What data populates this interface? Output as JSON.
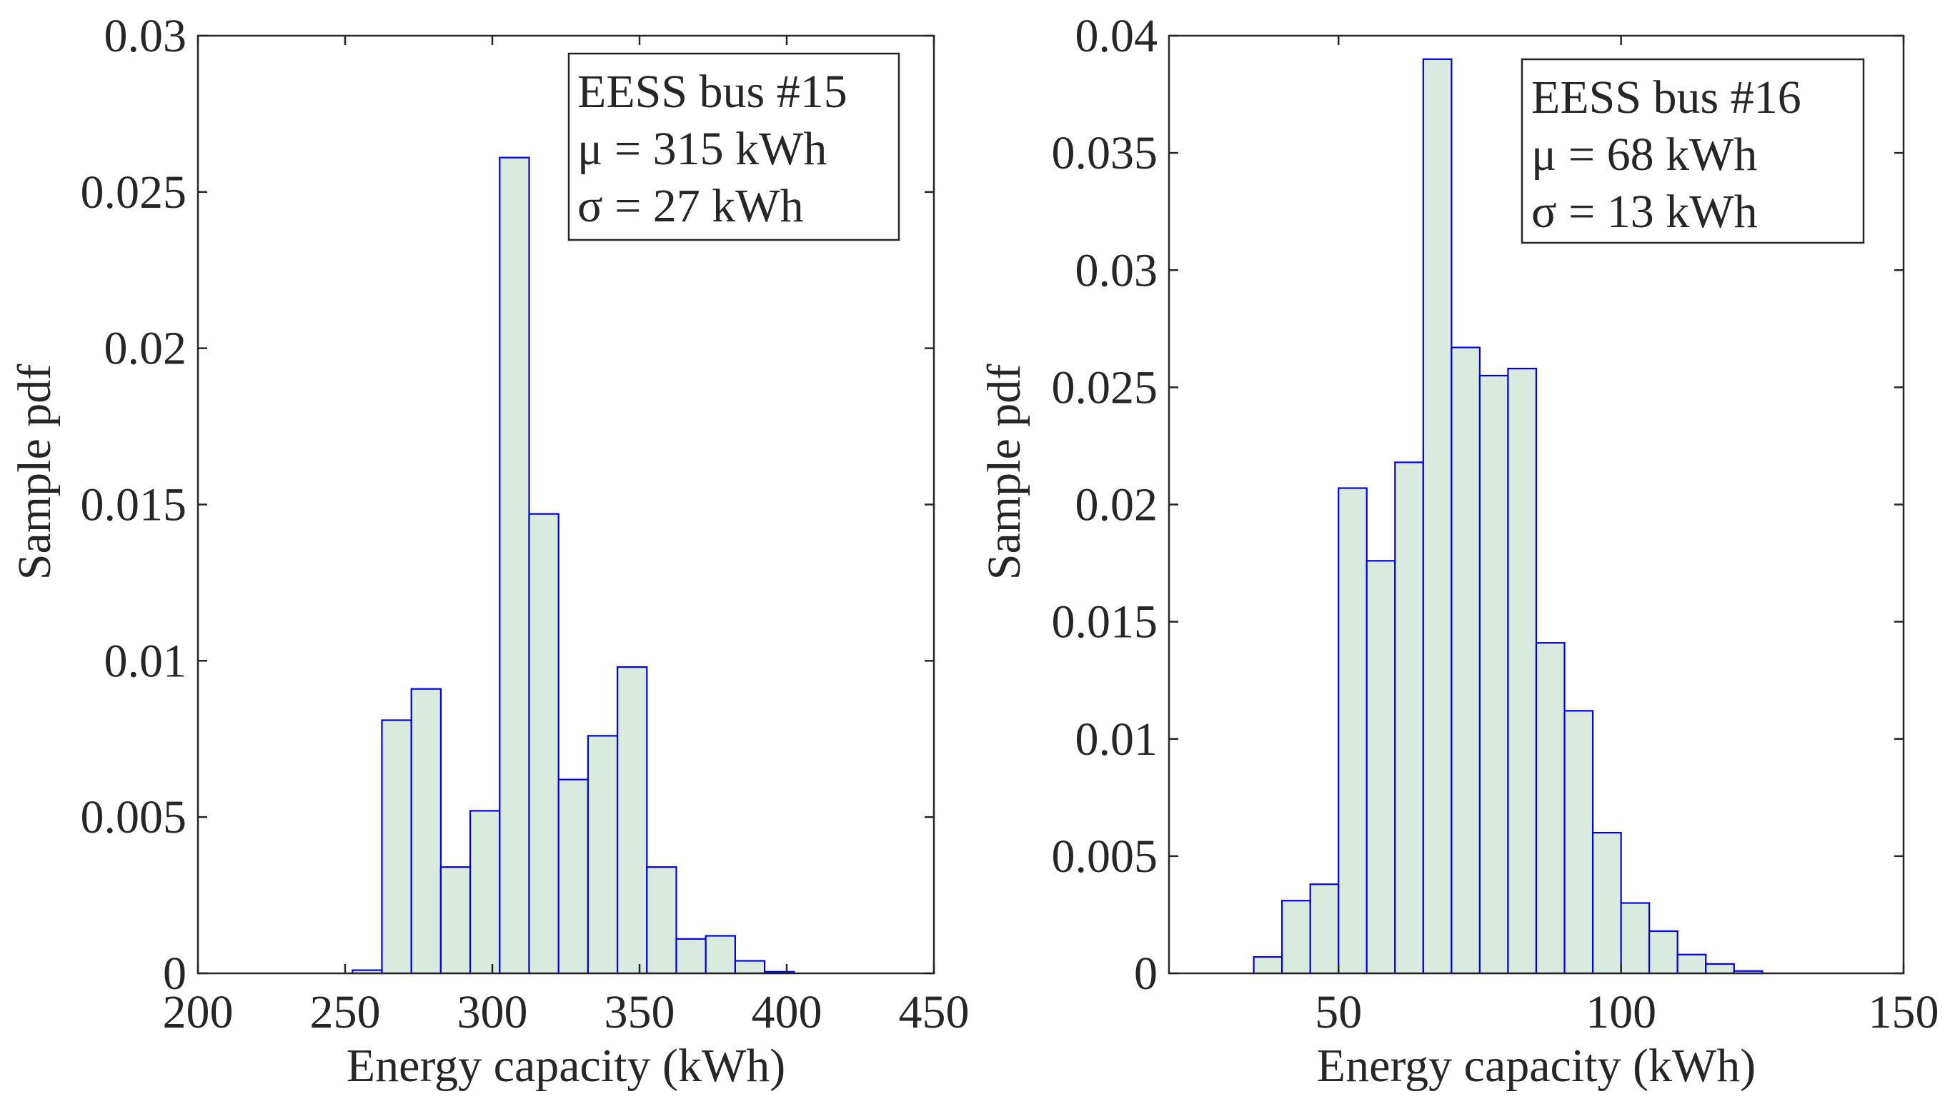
{
  "colors": {
    "bar_fill": "#d9eadf",
    "bar_edge": "#0000e6",
    "axis": "#262626",
    "background": "#ffffff"
  },
  "chart_data": [
    {
      "type": "bar",
      "subtype": "histogram",
      "xlabel": "Energy capacity (kWh)",
      "ylabel": "Sample pdf",
      "xlim": [
        200,
        450
      ],
      "ylim": [
        0,
        0.03
      ],
      "xticks": [
        200,
        250,
        300,
        350,
        400,
        450
      ],
      "xtick_labels": [
        "200",
        "250",
        "300",
        "350",
        "400",
        "450"
      ],
      "yticks": [
        0,
        0.005,
        0.01,
        0.015,
        0.02,
        0.025,
        0.03
      ],
      "ytick_labels": [
        "0",
        "0.005",
        "0.01",
        "0.015",
        "0.02",
        "0.025",
        "0.03"
      ],
      "bin_edges": [
        252.5,
        262.5,
        272.5,
        282.5,
        292.5,
        302.5,
        312.5,
        322.5,
        332.5,
        342.5,
        352.5,
        362.5,
        372.5,
        382.5,
        392.5,
        402.5
      ],
      "values": [
        0.0001,
        0.0081,
        0.0091,
        0.0034,
        0.0052,
        0.0261,
        0.0147,
        0.0062,
        0.0076,
        0.0098,
        0.0034,
        0.0011,
        0.0012,
        0.0004,
        5e-05
      ],
      "legend": [
        "EESS bus #15",
        "μ = 315 kWh",
        "σ = 27 kWh"
      ],
      "legend_location": "top-right"
    },
    {
      "type": "bar",
      "subtype": "histogram",
      "xlabel": "Energy capacity (kWh)",
      "ylabel": "Sample pdf",
      "xlim": [
        20,
        150
      ],
      "ylim": [
        0,
        0.04
      ],
      "xticks": [
        50,
        100,
        150
      ],
      "xtick_labels": [
        "50",
        "100",
        "150"
      ],
      "yticks": [
        0,
        0.005,
        0.01,
        0.015,
        0.02,
        0.025,
        0.03,
        0.035,
        0.04
      ],
      "ytick_labels": [
        "0",
        "0.005",
        "0.01",
        "0.015",
        "0.02",
        "0.025",
        "0.03",
        "0.035",
        "0.04"
      ],
      "bin_edges": [
        35,
        40,
        45,
        50,
        55,
        60,
        65,
        70,
        75,
        80,
        85,
        90,
        95,
        100,
        105,
        110,
        115,
        120,
        125
      ],
      "values": [
        0.0007,
        0.0031,
        0.0038,
        0.0207,
        0.0176,
        0.0218,
        0.039,
        0.0267,
        0.0255,
        0.0258,
        0.0141,
        0.0112,
        0.006,
        0.003,
        0.0018,
        0.0008,
        0.0004,
        0.0001
      ],
      "legend": [
        "EESS bus #16",
        "μ = 68 kWh",
        "σ = 13 kWh"
      ],
      "legend_location": "top-right"
    }
  ]
}
